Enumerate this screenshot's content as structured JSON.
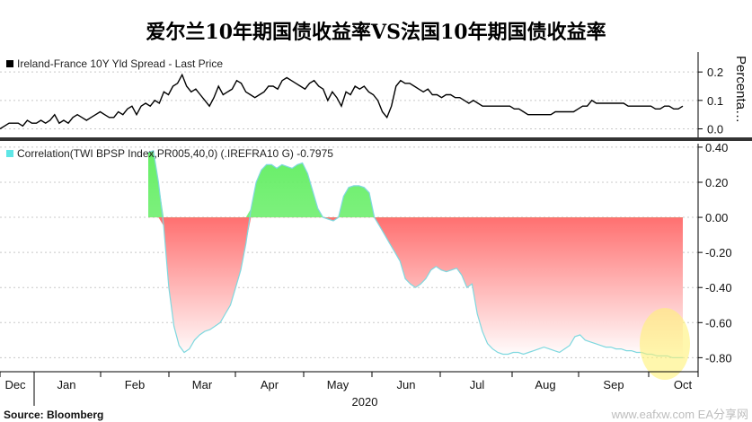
{
  "title": "爱尔兰10年期国债收益率VS法国10年期国债收益率",
  "source": "Source: Bloomberg",
  "watermark": "www.eafxw.com EA分享网",
  "colors": {
    "line": "#000000",
    "positive": "#66ee66",
    "negative": "#ff7070",
    "fade": "#ffffff",
    "highlight": "#fff176"
  },
  "chart_data": [
    {
      "type": "line",
      "legend": "Ireland-France 10Y Yld Spread - Last Price",
      "ylabel": "Percenta…",
      "ylim": [
        -0.03,
        0.27
      ],
      "yticks": [
        "0.2",
        "0.1",
        "0.0"
      ],
      "ytick_values": [
        0.2,
        0.1,
        0.0
      ],
      "x": [
        0,
        1,
        2,
        3,
        4,
        5,
        6,
        7,
        8,
        9,
        10,
        11,
        12,
        13,
        14,
        15,
        16,
        17,
        18,
        19,
        20,
        21,
        22,
        23,
        24,
        25,
        26,
        27,
        28,
        29,
        30,
        31,
        32,
        33,
        34,
        35,
        36,
        37,
        38,
        39,
        40,
        41,
        42,
        43,
        44,
        45,
        46,
        47,
        48,
        49,
        50,
        51,
        52,
        53,
        54,
        55,
        56,
        57,
        58,
        59,
        60,
        61,
        62,
        63,
        64,
        65,
        66,
        67,
        68,
        69,
        70,
        71,
        72,
        73,
        74,
        75,
        76,
        77,
        78,
        79,
        80,
        81,
        82,
        83,
        84,
        85,
        86,
        87,
        88,
        89,
        90,
        91,
        92,
        93,
        94,
        95,
        96,
        97,
        98,
        99,
        100,
        101,
        102,
        103,
        104,
        105,
        106,
        107,
        108,
        109,
        110,
        111,
        112,
        113,
        114,
        115,
        116,
        117,
        118,
        119,
        120,
        121,
        122,
        123,
        124,
        125,
        126,
        127,
        128,
        129,
        130,
        131,
        132,
        133,
        134,
        135,
        136,
        137,
        138,
        139,
        140,
        141,
        142,
        143,
        144,
        145,
        146,
        147,
        148,
        149,
        150
      ],
      "values": [
        0.0,
        0.01,
        0.02,
        0.02,
        0.02,
        0.01,
        0.03,
        0.02,
        0.02,
        0.03,
        0.02,
        0.03,
        0.05,
        0.02,
        0.03,
        0.02,
        0.04,
        0.05,
        0.04,
        0.03,
        0.04,
        0.05,
        0.06,
        0.05,
        0.04,
        0.04,
        0.06,
        0.05,
        0.07,
        0.08,
        0.05,
        0.08,
        0.09,
        0.08,
        0.1,
        0.09,
        0.13,
        0.12,
        0.15,
        0.16,
        0.19,
        0.15,
        0.13,
        0.14,
        0.12,
        0.1,
        0.08,
        0.11,
        0.15,
        0.12,
        0.13,
        0.14,
        0.17,
        0.16,
        0.13,
        0.12,
        0.11,
        0.12,
        0.13,
        0.15,
        0.15,
        0.14,
        0.17,
        0.18,
        0.17,
        0.16,
        0.15,
        0.14,
        0.16,
        0.17,
        0.15,
        0.14,
        0.1,
        0.13,
        0.11,
        0.08,
        0.13,
        0.12,
        0.15,
        0.14,
        0.15,
        0.13,
        0.12,
        0.1,
        0.06,
        0.04,
        0.08,
        0.15,
        0.17,
        0.16,
        0.16,
        0.15,
        0.14,
        0.13,
        0.14,
        0.12,
        0.12,
        0.11,
        0.12,
        0.12,
        0.11,
        0.11,
        0.1,
        0.09,
        0.1,
        0.09,
        0.08,
        0.08,
        0.08,
        0.08,
        0.08,
        0.08,
        0.08,
        0.07,
        0.07,
        0.06,
        0.05,
        0.05,
        0.05,
        0.05,
        0.05,
        0.05,
        0.06,
        0.06,
        0.06,
        0.06,
        0.06,
        0.07,
        0.08,
        0.08,
        0.1,
        0.09,
        0.09,
        0.09,
        0.09,
        0.09,
        0.09,
        0.09,
        0.08,
        0.08,
        0.08,
        0.08,
        0.08,
        0.08,
        0.07,
        0.07,
        0.08,
        0.08,
        0.07,
        0.07,
        0.08
      ]
    },
    {
      "type": "area",
      "legend": "Correlation(TWI BPSP Index,PR005,40,0) (.IREFRA10 G) -0.7975",
      "ylim": [
        -0.88,
        0.42
      ],
      "yticks": [
        "0.40",
        "0.20",
        "0.00",
        "-0.20",
        "-0.40",
        "-0.60",
        "-0.80"
      ],
      "ytick_values": [
        0.4,
        0.2,
        0.0,
        -0.2,
        -0.4,
        -0.6,
        -0.8
      ],
      "x": [
        0,
        1,
        2,
        3,
        4,
        5,
        6,
        7,
        8,
        9,
        10,
        11,
        12,
        13,
        14,
        15,
        16,
        17,
        18,
        19,
        20,
        21,
        22,
        23,
        24,
        25,
        26,
        27,
        28,
        29,
        30,
        31,
        32,
        33,
        34,
        35,
        36,
        37,
        38,
        39,
        40,
        41,
        42,
        43,
        44,
        45,
        46,
        47,
        48,
        49,
        50,
        51,
        52,
        53,
        54,
        55,
        56,
        57,
        58,
        59,
        60,
        61,
        62,
        63,
        64,
        65,
        66,
        67,
        68,
        69,
        70,
        71,
        72,
        73,
        74,
        75,
        76,
        77,
        78,
        79,
        80,
        81,
        82,
        83,
        84,
        85,
        86,
        87,
        88,
        89,
        90,
        91,
        92,
        93,
        94,
        95,
        96,
        97,
        98,
        99,
        100,
        101,
        102,
        103,
        104
      ],
      "values": [
        0.37,
        0.38,
        0.2,
        -0.05,
        -0.4,
        -0.62,
        -0.73,
        -0.77,
        -0.75,
        -0.7,
        -0.67,
        -0.65,
        -0.64,
        -0.62,
        -0.6,
        -0.55,
        -0.5,
        -0.4,
        -0.3,
        -0.15,
        0.05,
        0.2,
        0.27,
        0.3,
        0.3,
        0.28,
        0.3,
        0.29,
        0.28,
        0.3,
        0.31,
        0.25,
        0.15,
        0.05,
        0.0,
        -0.01,
        -0.02,
        0.0,
        0.12,
        0.17,
        0.18,
        0.18,
        0.17,
        0.14,
        0.0,
        -0.05,
        -0.1,
        -0.15,
        -0.2,
        -0.25,
        -0.35,
        -0.38,
        -0.4,
        -0.38,
        -0.35,
        -0.3,
        -0.28,
        -0.3,
        -0.31,
        -0.3,
        -0.29,
        -0.33,
        -0.4,
        -0.38,
        -0.55,
        -0.65,
        -0.72,
        -0.75,
        -0.77,
        -0.78,
        -0.78,
        -0.77,
        -0.77,
        -0.78,
        -0.77,
        -0.76,
        -0.75,
        -0.74,
        -0.75,
        -0.76,
        -0.77,
        -0.75,
        -0.73,
        -0.68,
        -0.67,
        -0.7,
        -0.71,
        -0.72,
        -0.73,
        -0.74,
        -0.74,
        -0.75,
        -0.75,
        -0.76,
        -0.76,
        -0.77,
        -0.77,
        -0.78,
        -0.78,
        -0.79,
        -0.79,
        -0.79,
        -0.8,
        -0.8,
        -0.8
      ]
    }
  ],
  "x_axis": {
    "months": [
      "Dec",
      "Jan",
      "Feb",
      "Mar",
      "Apr",
      "May",
      "Jun",
      "Jul",
      "Aug",
      "Sep",
      "Oct"
    ],
    "year": "2020"
  }
}
